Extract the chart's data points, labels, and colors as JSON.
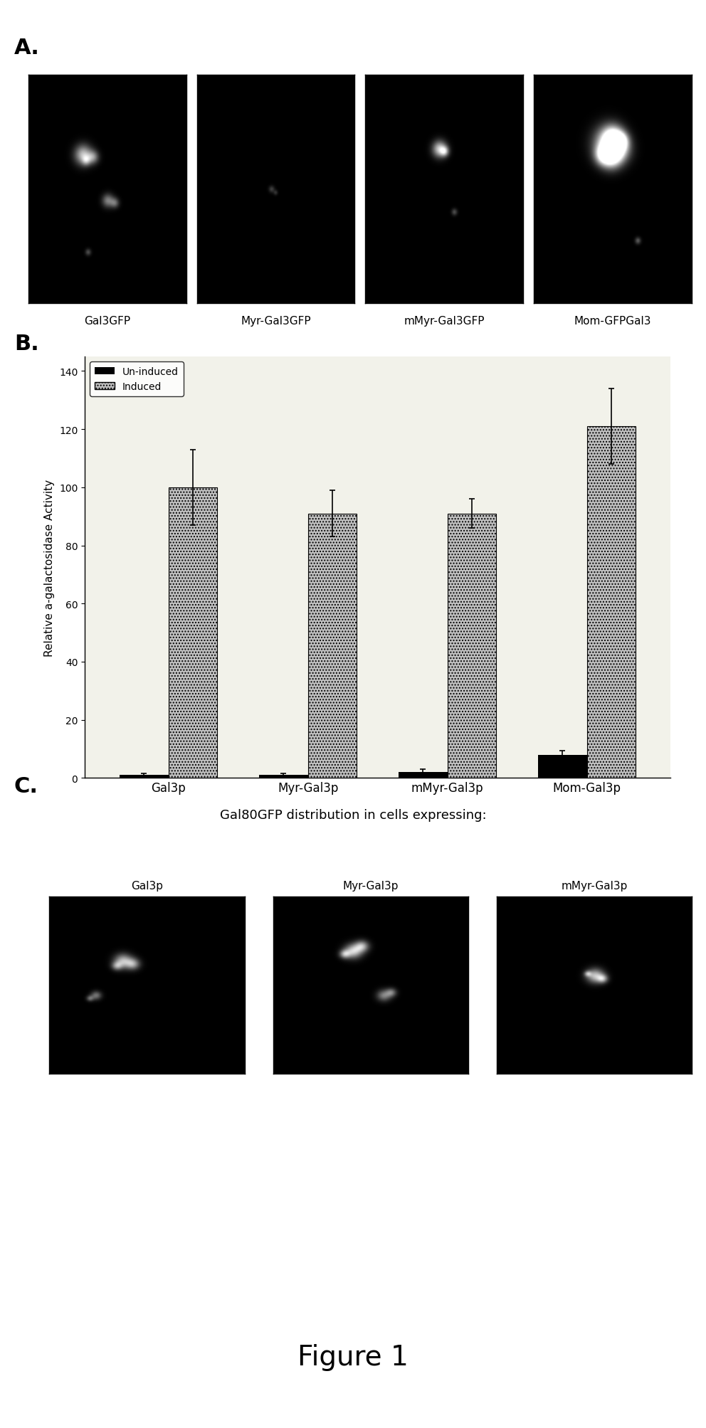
{
  "panel_A_labels": [
    "Gal3GFP",
    "Myr-Gal3GFP",
    "mMyr-Gal3GFP",
    "Mom-GFPGal3"
  ],
  "panel_B": {
    "categories": [
      "Gal3p",
      "Myr-Gal3p",
      "mMyr-Gal3p",
      "Mom-Gal3p"
    ],
    "uninduced_values": [
      1,
      1,
      2,
      8
    ],
    "induced_values": [
      100,
      91,
      91,
      121
    ],
    "uninduced_errors": [
      0.5,
      0.5,
      1,
      1.5
    ],
    "induced_errors": [
      13,
      8,
      5,
      13
    ],
    "ylabel": "Relative a-galactosidase Activity",
    "ylim": [
      0,
      145
    ],
    "yticks": [
      0,
      20,
      40,
      60,
      80,
      100,
      120,
      140
    ],
    "legend_uninduced": "Un-induced",
    "legend_induced": "Induced",
    "bar_color_uninduced": "#000000",
    "bar_color_induced": "#c0c0c0",
    "bar_hatch_induced": "....",
    "bar_width": 0.35
  },
  "panel_C_labels": [
    "Gal3p",
    "Myr-Gal3p",
    "mMyr-Gal3p"
  ],
  "panel_C_title": "Gal80GFP distribution in cells expressing:",
  "figure_label": "Figure 1",
  "label_A": "A.",
  "label_B": "B.",
  "label_C": "C.",
  "background_color": "#ffffff"
}
